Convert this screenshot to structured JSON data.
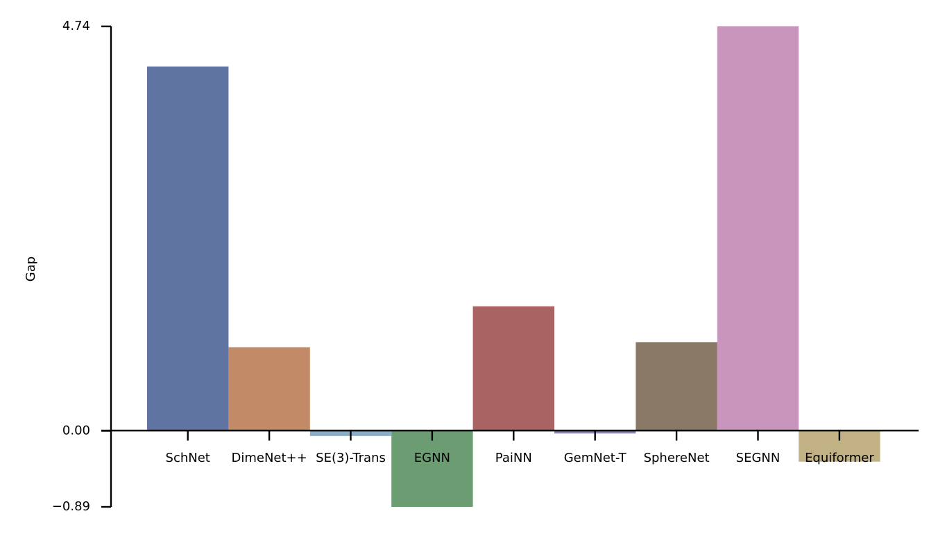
{
  "chart_data": {
    "type": "bar",
    "title": "",
    "xlabel": "",
    "ylabel": "Gap",
    "categories": [
      "SchNet",
      "DimeNet++",
      "SE(3)-Trans",
      "EGNN",
      "PaiNN",
      "GemNet-T",
      "SphereNet",
      "SEGNN",
      "Equiformer"
    ],
    "values": [
      4.27,
      0.98,
      -0.06,
      -0.89,
      1.46,
      -0.03,
      1.04,
      4.74,
      -0.36
    ],
    "colors": [
      "#6074a2",
      "#c28a66",
      "#8aaec8",
      "#6c9c72",
      "#a96362",
      "#8b83b1",
      "#8a7867",
      "#c896bc",
      "#c1b184"
    ],
    "yticks": [
      "4.74",
      "0.00",
      "−0.89"
    ],
    "ytick_values": [
      4.74,
      0,
      -0.89
    ],
    "ylim": [
      -0.89,
      4.74
    ],
    "grid": false
  }
}
